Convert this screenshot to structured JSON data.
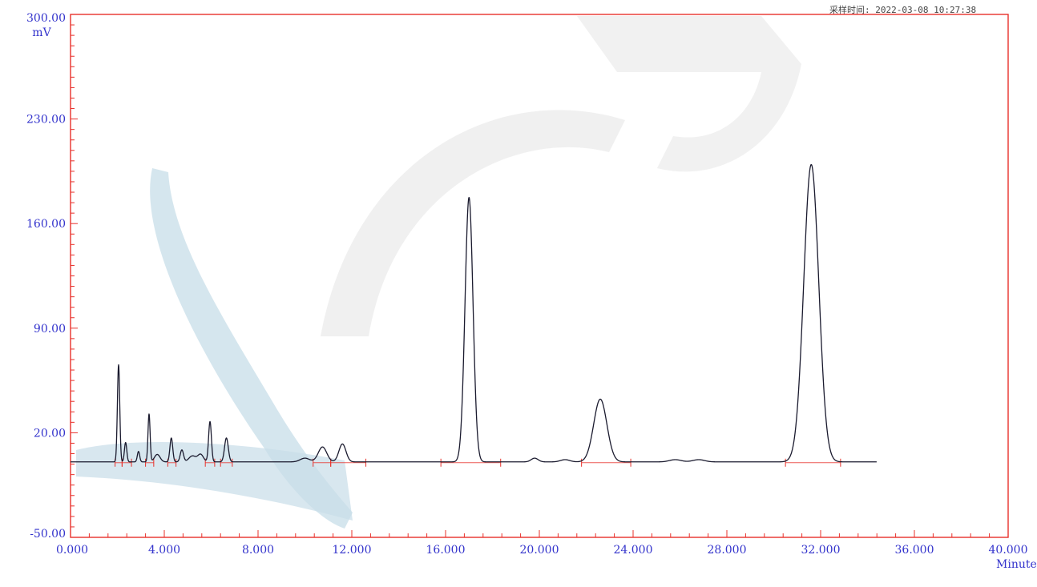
{
  "header": {
    "text": "采样时间: 2022-03-08 10:27:38"
  },
  "chart_data": {
    "type": "line",
    "title": "",
    "xlabel": "",
    "ylabel": "",
    "x_unit_label": "Minutes",
    "y_unit_label": "mV",
    "xlim": [
      0,
      40
    ],
    "ylim": [
      -50,
      300
    ],
    "x_ticks": [
      0,
      4,
      8,
      12,
      16,
      20,
      24,
      28,
      32,
      36,
      40
    ],
    "x_tick_labels": [
      "0.000",
      "4.000",
      "8.000",
      "12.000",
      "16.000",
      "20.000",
      "24.000",
      "28.000",
      "32.000",
      "36.000",
      "40.000"
    ],
    "y_ticks": [
      300,
      230,
      160,
      90,
      20,
      -50
    ],
    "y_tick_labels": [
      "300.00",
      "230.00",
      "160.00",
      "90.00",
      "20.00",
      "-50.00"
    ],
    "baseline": 0.5,
    "x_end": 34.4,
    "peaks": [
      {
        "rt": 2.05,
        "height": 65,
        "width": 0.05
      },
      {
        "rt": 2.35,
        "height": 13,
        "width": 0.05
      },
      {
        "rt": 2.9,
        "height": 7,
        "width": 0.05
      },
      {
        "rt": 3.35,
        "height": 32,
        "width": 0.045
      },
      {
        "rt": 3.7,
        "height": 5,
        "width": 0.12
      },
      {
        "rt": 4.3,
        "height": 16,
        "width": 0.06
      },
      {
        "rt": 4.75,
        "height": 8,
        "width": 0.07
      },
      {
        "rt": 5.2,
        "height": 4,
        "width": 0.15
      },
      {
        "rt": 5.55,
        "height": 5,
        "width": 0.12
      },
      {
        "rt": 5.95,
        "height": 27,
        "width": 0.06
      },
      {
        "rt": 6.65,
        "height": 16,
        "width": 0.08
      },
      {
        "rt": 10.0,
        "height": 2.5,
        "width": 0.2
      },
      {
        "rt": 10.75,
        "height": 10,
        "width": 0.18
      },
      {
        "rt": 11.6,
        "height": 12,
        "width": 0.15
      },
      {
        "rt": 17.0,
        "height": 177,
        "width": 0.17
      },
      {
        "rt": 19.8,
        "height": 2.5,
        "width": 0.15
      },
      {
        "rt": 21.1,
        "height": 1.5,
        "width": 0.2
      },
      {
        "rt": 22.6,
        "height": 42,
        "width": 0.28
      },
      {
        "rt": 25.8,
        "height": 1.5,
        "width": 0.25
      },
      {
        "rt": 26.8,
        "height": 1.5,
        "width": 0.25
      },
      {
        "rt": 31.6,
        "height": 199,
        "width": 0.32
      }
    ],
    "integration_marks": [
      {
        "x1": 1.9,
        "x2": 2.2
      },
      {
        "x1": 2.2,
        "x2": 2.6
      },
      {
        "x1": 3.2,
        "x2": 3.55
      },
      {
        "x1": 4.15,
        "x2": 4.5
      },
      {
        "x1": 5.75,
        "x2": 6.15
      },
      {
        "x1": 6.4,
        "x2": 6.9
      },
      {
        "x1": 10.35,
        "x2": 11.1
      },
      {
        "x1": 11.1,
        "x2": 12.6
      },
      {
        "x1": 15.8,
        "x2": 18.35
      },
      {
        "x1": 21.8,
        "x2": 23.9
      },
      {
        "x1": 30.5,
        "x2": 32.85
      }
    ],
    "colors": {
      "frame": "#e8302a",
      "trace": "#1a1a2e",
      "tick_label": "#3333cc",
      "integration": "#e8302a",
      "watermark": "#c7dde8"
    },
    "grid": false,
    "legend": "none"
  }
}
